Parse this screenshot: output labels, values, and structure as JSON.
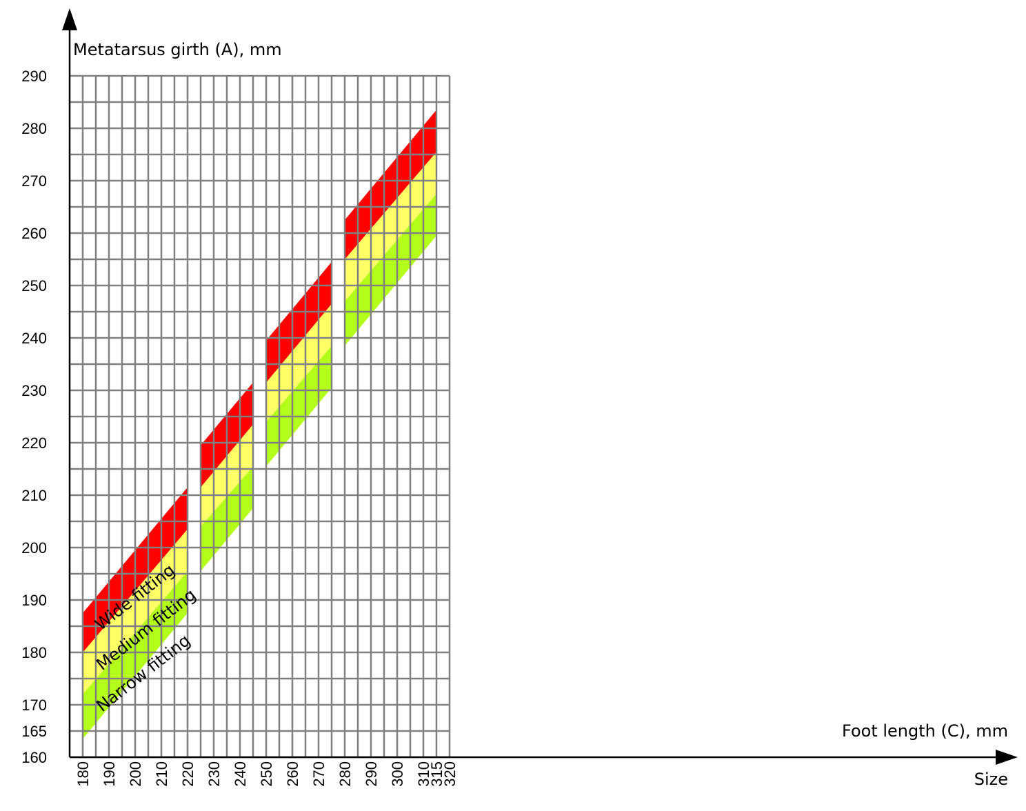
{
  "chart_data": {
    "type": "area",
    "ylabel": "Metatarsus girth (A), mm",
    "xlabel": "Foot length (C), mm",
    "size_label": "Size",
    "xlim": [
      175,
      320
    ],
    "ylim": [
      160,
      290
    ],
    "grid": true,
    "x_ticks": [
      180,
      190,
      200,
      210,
      220,
      230,
      240,
      250,
      260,
      270,
      280,
      290,
      300,
      310,
      315,
      320
    ],
    "y_ticks": [
      160,
      165,
      170,
      180,
      190,
      200,
      210,
      220,
      230,
      240,
      250,
      260,
      270,
      280,
      290
    ],
    "highlight_ticks": {
      "x": [
        315
      ],
      "y": [
        165
      ]
    },
    "highlight_color": "#ff0000",
    "colors": {
      "wide": "#ff0000",
      "medium": "#ffff66",
      "narrow": "#b3ff1a",
      "grid": "#808080"
    },
    "band_labels": {
      "wide": "Wide fitting",
      "medium": "Medium fitting",
      "narrow": "Narrow fitting"
    },
    "segments": [
      {
        "x": [
          180,
          220
        ],
        "boundaries_start": [
          163.5,
          172,
          180,
          187.5
        ],
        "boundaries_end": [
          187.5,
          195.5,
          203.5,
          211.5
        ]
      },
      {
        "x": [
          225,
          245
        ],
        "boundaries_start": [
          195.5,
          204,
          211.5,
          219.5
        ],
        "boundaries_end": [
          207.5,
          215.5,
          223.5,
          231.5
        ]
      },
      {
        "x": [
          250,
          275
        ],
        "boundaries_start": [
          215.5,
          224,
          231.5,
          239.5
        ],
        "boundaries_end": [
          230.5,
          238.5,
          246.5,
          254.5
        ]
      },
      {
        "x": [
          280,
          315
        ],
        "boundaries_start": [
          238.5,
          247,
          255,
          262.5
        ],
        "boundaries_end": [
          259.5,
          267.5,
          275.5,
          283.5
        ]
      }
    ]
  }
}
